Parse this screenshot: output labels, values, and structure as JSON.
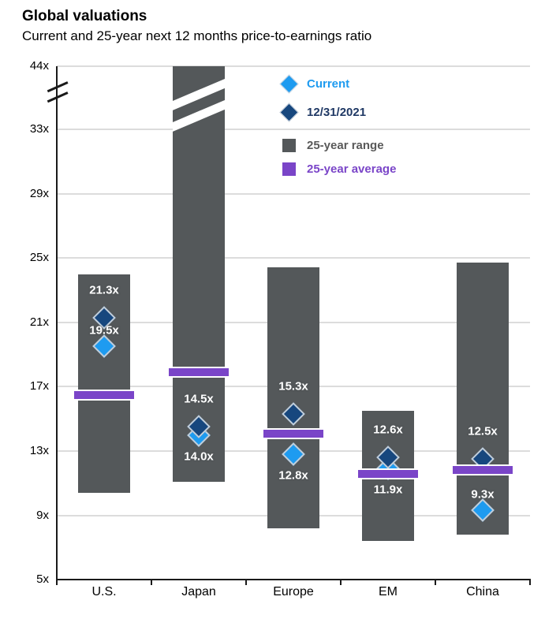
{
  "header": {
    "title": "Global valuations",
    "subtitle": "Current and 25-year next 12 months price-to-earnings ratio"
  },
  "axis": {
    "y_tick_labels": [
      "44x",
      "33x",
      "29x",
      "25x",
      "21x",
      "17x",
      "13x",
      "9x",
      "5x"
    ],
    "y_tick_values": [
      44,
      33,
      29,
      25,
      21,
      17,
      13,
      9,
      5
    ],
    "has_axis_break": true
  },
  "chart_data": {
    "type": "bar",
    "title": "Global valuations",
    "subtitle": "Current and 25-year next 12 months price-to-earnings ratio",
    "unit_suffix": "x",
    "categories": [
      "U.S.",
      "Japan",
      "Europe",
      "EM",
      "China"
    ],
    "series": [
      {
        "name": "Current",
        "marker": "diamond",
        "color": "#1e9bf0",
        "values": [
          19.5,
          14.0,
          12.8,
          11.9,
          9.3
        ]
      },
      {
        "name": "12/31/2021",
        "marker": "diamond",
        "color": "#17477e",
        "values": [
          21.3,
          14.5,
          15.3,
          12.6,
          12.5
        ]
      },
      {
        "name": "25-year range",
        "marker": "square",
        "color": "#54585a",
        "low": [
          10.4,
          11.1,
          8.2,
          7.4,
          7.8
        ],
        "high": [
          24.0,
          44,
          24.4,
          15.5,
          24.7
        ]
      },
      {
        "name": "25-year average",
        "marker": "square",
        "color": "#7a45c8",
        "values": [
          16.5,
          17.9,
          14.1,
          11.6,
          11.8
        ]
      }
    ],
    "ylim": [
      5,
      44
    ],
    "grid": true,
    "legend_position": "top-right",
    "y_axis_break": {
      "between": [
        33,
        44
      ],
      "clipped_categories": [
        "Japan"
      ]
    },
    "current_label_side": [
      "above",
      "below",
      "below",
      "below",
      "above"
    ]
  },
  "colors": {
    "range_bar": "#54585a",
    "average_bar": "#7a45c8",
    "current_diamond": "#1e9bf0",
    "dec_2021_diamond": "#17477e",
    "gridline": "#dcdcdc",
    "axis": "#1a1a1a",
    "data_label": "#ffffff",
    "legend_text": [
      "#1e9bf0",
      "#1f3864",
      "#595959",
      "#7a45c8"
    ]
  }
}
